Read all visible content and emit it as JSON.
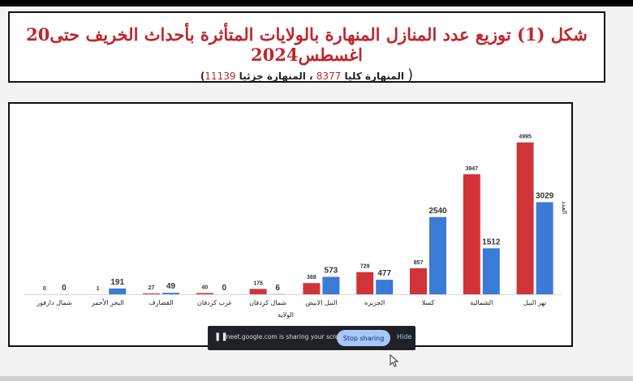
{
  "title": "شكل (1) توزيع عدد المنازل المنهارة بالولايات المتأثرة بأحداث الخريف حتى20 اغسطس2024",
  "subtitle": {
    "open_paren": "(",
    "label_full": "المنهارة كليا",
    "value_full": "8377",
    "separator": "، المنهارة جزئيا",
    "value_partial": "11139",
    "close_paren": ")"
  },
  "chart_data": {
    "type": "bar",
    "xlabel": "الولاية",
    "ylabel": "العدد",
    "categories": [
      "شمال دارفور",
      "البحر الأحمر",
      "القضارف",
      "غرب كردفان",
      "شمال كردفان",
      "النيل الابيض",
      "الجزيره",
      "كسلا",
      "الشمالية",
      "نهر النيل"
    ],
    "series": [
      {
        "values": [
          0,
          1,
          27,
          40,
          175,
          368,
          729,
          857,
          3947,
          4995
        ],
        "color": "#d13438"
      },
      {
        "values": [
          0,
          191,
          49,
          0,
          6,
          573,
          477,
          2540,
          1512,
          3029
        ],
        "color": "#3a7bd5"
      }
    ],
    "ylim": [
      0,
      5200
    ],
    "grid": false,
    "legend": "none"
  },
  "screen_share": {
    "pause_icon": "pause-icon",
    "message": "meet.google.com is sharing your screen.",
    "stop_label": "Stop sharing",
    "hide_label": "Hide"
  }
}
